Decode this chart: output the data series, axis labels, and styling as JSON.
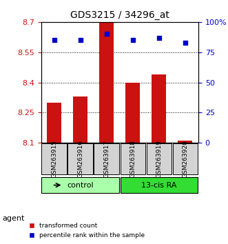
{
  "title": "GDS3215 / 34296_at",
  "samples": [
    "GSM263915",
    "GSM263916",
    "GSM263917",
    "GSM263918",
    "GSM263919",
    "GSM263920"
  ],
  "bar_values": [
    8.3,
    8.33,
    8.7,
    8.4,
    8.44,
    8.11
  ],
  "bar_bottom": 8.1,
  "bar_color": "#cc1111",
  "dot_values": [
    85,
    85,
    90,
    85,
    87,
    83
  ],
  "dot_color": "#0000cc",
  "ylim_left": [
    8.1,
    8.7
  ],
  "ylim_right": [
    0,
    100
  ],
  "yticks_left": [
    8.1,
    8.25,
    8.4,
    8.55,
    8.7
  ],
  "yticks_right": [
    0,
    25,
    50,
    75,
    100
  ],
  "ytick_labels_left": [
    "8.1",
    "8.25",
    "8.4",
    "8.55",
    "8.7"
  ],
  "ytick_labels_right": [
    "0",
    "25",
    "50",
    "75",
    "100%"
  ],
  "grid_values": [
    8.25,
    8.4,
    8.55
  ],
  "bar_width": 0.55,
  "group_info": [
    {
      "label": "control",
      "start": 0,
      "end": 2,
      "color": "#aaffaa"
    },
    {
      "label": "13-cis RA",
      "start": 3,
      "end": 5,
      "color": "#33dd33"
    }
  ],
  "legend_items": [
    "transformed count",
    "percentile rank within the sample"
  ],
  "legend_colors": [
    "#cc1111",
    "#0000cc"
  ]
}
